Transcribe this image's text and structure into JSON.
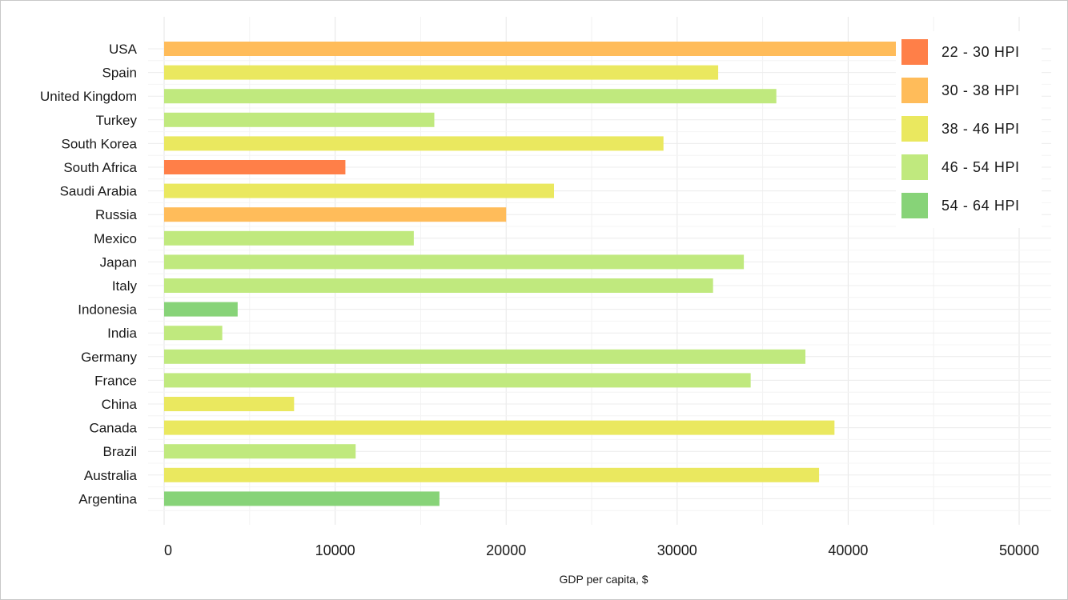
{
  "chart_data": {
    "type": "bar",
    "orientation": "horizontal",
    "title": "",
    "xlabel": "GDP per capita, $",
    "ylabel": "",
    "xlim": [
      0,
      50000
    ],
    "x_ticks": [
      0,
      10000,
      20000,
      30000,
      40000,
      50000
    ],
    "x_tick_labels": [
      "0",
      "10000",
      "20000",
      "30000",
      "40000",
      "50000"
    ],
    "grid": true,
    "legend_position": "top-right",
    "legend": [
      {
        "label": "22 - 30 HPI",
        "color": "#FF7F48"
      },
      {
        "label": "30 - 38 HPI",
        "color": "#FFBC5A"
      },
      {
        "label": "38 - 46 HPI",
        "color": "#EAE85F"
      },
      {
        "label": "46 - 54 HPI",
        "color": "#C0E97E"
      },
      {
        "label": "54 - 64 HPI",
        "color": "#87D378"
      }
    ],
    "bars": [
      {
        "category": "USA",
        "value": 43000,
        "group": "30 - 38 HPI"
      },
      {
        "category": "Spain",
        "value": 32400,
        "group": "38 - 46 HPI"
      },
      {
        "category": "United Kingdom",
        "value": 35800,
        "group": "46 - 54 HPI"
      },
      {
        "category": "Turkey",
        "value": 15800,
        "group": "46 - 54 HPI"
      },
      {
        "category": "South Korea",
        "value": 29200,
        "group": "38 - 46 HPI"
      },
      {
        "category": "South Africa",
        "value": 10600,
        "group": "22 - 30 HPI"
      },
      {
        "category": "Saudi Arabia",
        "value": 22800,
        "group": "38 - 46 HPI"
      },
      {
        "category": "Russia",
        "value": 20000,
        "group": "30 - 38 HPI"
      },
      {
        "category": "Mexico",
        "value": 14600,
        "group": "46 - 54 HPI"
      },
      {
        "category": "Japan",
        "value": 33900,
        "group": "46 - 54 HPI"
      },
      {
        "category": "Italy",
        "value": 32100,
        "group": "46 - 54 HPI"
      },
      {
        "category": "Indonesia",
        "value": 4300,
        "group": "54 - 64 HPI"
      },
      {
        "category": "India",
        "value": 3400,
        "group": "46 - 54 HPI"
      },
      {
        "category": "Germany",
        "value": 37500,
        "group": "46 - 54 HPI"
      },
      {
        "category": "France",
        "value": 34300,
        "group": "46 - 54 HPI"
      },
      {
        "category": "China",
        "value": 7600,
        "group": "38 - 46 HPI"
      },
      {
        "category": "Canada",
        "value": 39200,
        "group": "38 - 46 HPI"
      },
      {
        "category": "Brazil",
        "value": 11200,
        "group": "46 - 54 HPI"
      },
      {
        "category": "Australia",
        "value": 38300,
        "group": "38 - 46 HPI"
      },
      {
        "category": "Argentina",
        "value": 16100,
        "group": "54 - 64 HPI"
      }
    ]
  }
}
